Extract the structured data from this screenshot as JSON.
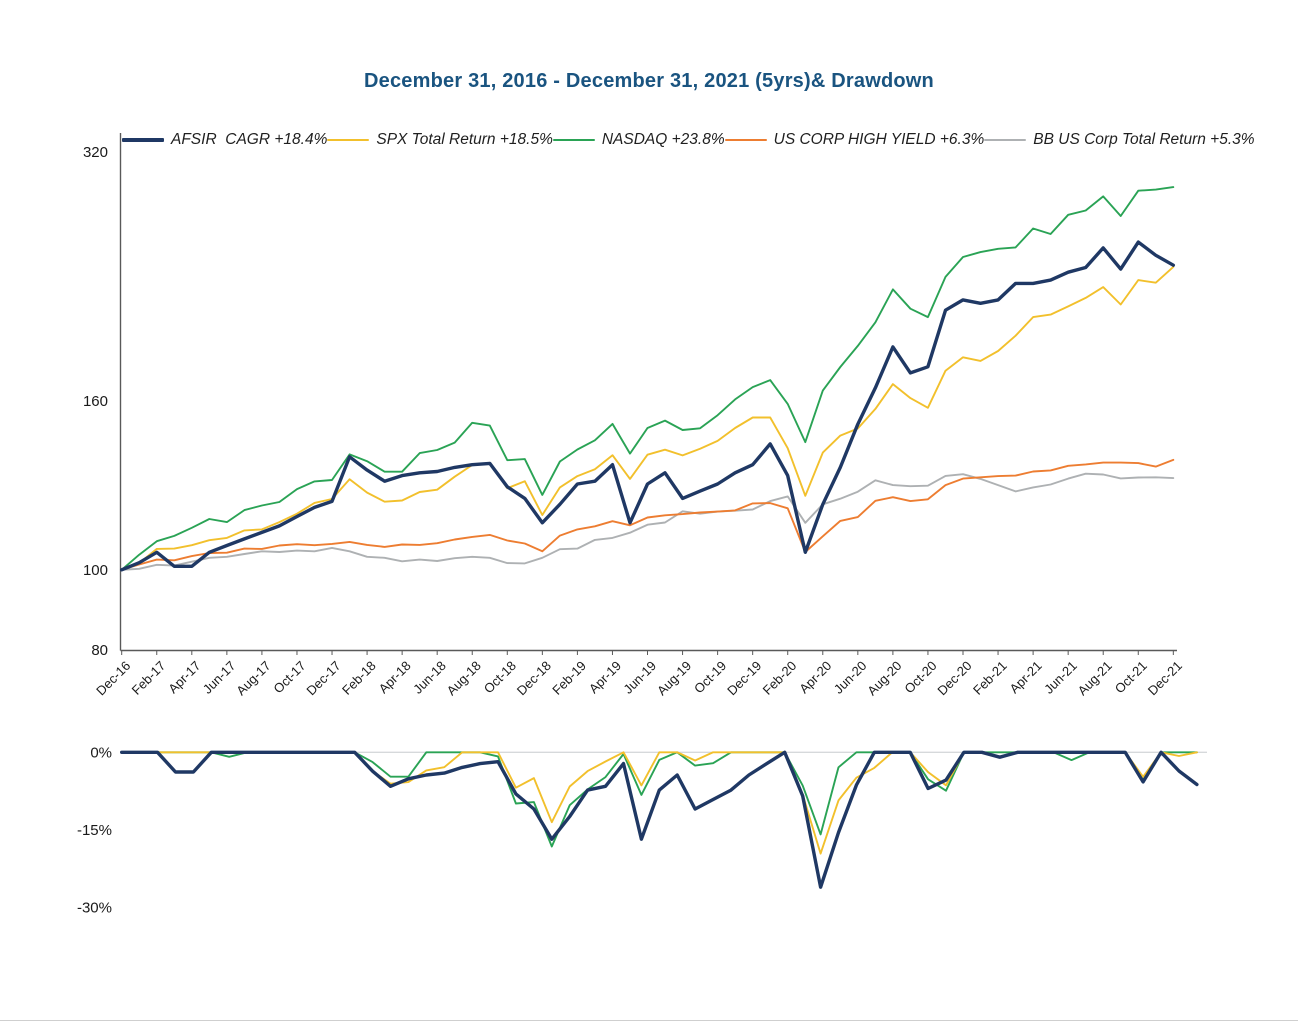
{
  "title": "December 31, 2016 - December 31, 2021 (5yrs)& Drawdown",
  "title_color": "#1A5480",
  "chart_data": [
    {
      "type": "line",
      "name": "cumulative-performance",
      "y_scale": "log2",
      "y_axis_ticks": [
        320,
        160,
        100,
        80
      ],
      "y_base": 100,
      "x_tick_labels": [
        "Dec-16",
        "Feb-17",
        "Apr-17",
        "Jun-17",
        "Aug-17",
        "Oct-17",
        "Dec-17",
        "Feb-18",
        "Apr-18",
        "Jun-18",
        "Aug-18",
        "Oct-18",
        "Dec-18",
        "Feb-19",
        "Apr-19",
        "Jun-19",
        "Aug-19",
        "Oct-19",
        "Dec-19",
        "Feb-20",
        "Apr-20",
        "Jun-20",
        "Aug-20",
        "Oct-20",
        "Dec-20",
        "Feb-21",
        "Apr-21",
        "Jun-21",
        "Aug-21",
        "Oct-21",
        "Dec-21"
      ],
      "months_total": 60,
      "legend_position": "top",
      "grid": false,
      "series": [
        {
          "name": "AFSIR  CAGR +18.4%",
          "color": "#1F3864",
          "width": 3.4,
          "drawdown": true,
          "values": [
            100,
            102,
            105,
            101,
            101,
            105,
            107,
            109,
            111,
            113,
            116,
            119,
            121,
            137,
            132,
            128,
            130,
            131,
            131.5,
            133,
            134,
            134.5,
            126,
            122,
            114,
            120,
            127,
            128,
            134,
            114,
            127,
            131,
            122,
            124.5,
            127,
            131,
            134,
            142,
            130,
            105,
            120,
            133,
            150,
            166,
            186,
            173,
            176,
            206,
            212,
            210,
            212,
            222,
            222,
            224,
            229,
            232,
            245,
            231,
            249,
            240,
            233.5
          ]
        },
        {
          "name": "SPX Total Return +18.5%",
          "color": "#F2C02C",
          "width": 1.9,
          "drawdown": true,
          "values": [
            100,
            101.9,
            106,
            106.1,
            107.1,
            108.6,
            109.3,
            111.6,
            111.9,
            114.2,
            116.9,
            120.5,
            121.8,
            128.7,
            124,
            120.9,
            121.3,
            124.2,
            125,
            129.6,
            133.9,
            134.7,
            125.5,
            128,
            116.5,
            125.8,
            129.8,
            132.3,
            137.6,
            128.8,
            137.8,
            139.7,
            137.5,
            140.1,
            143.2,
            148.4,
            152.8,
            152.8,
            140.3,
            122.9,
            138.6,
            145.3,
            148.2,
            156.5,
            167.7,
            161.3,
            157,
            174.1,
            180.7,
            178.9,
            183.9,
            191.9,
            202.1,
            203.5,
            208.2,
            213.2,
            219.7,
            209.3,
            224,
            222.4,
            232.4
          ]
        },
        {
          "name": "NASDAQ +23.8%",
          "color": "#2AA355",
          "width": 1.9,
          "drawdown": true,
          "values": [
            100,
            104.3,
            108.3,
            109.9,
            112.4,
            115.2,
            114.2,
            118.1,
            119.6,
            120.8,
            125.2,
            127.9,
            128.4,
            137.9,
            135.3,
            131.4,
            131.4,
            138.4,
            139.6,
            142.5,
            150.6,
            149.4,
            135.7,
            136.1,
            123.2,
            135.2,
            139.8,
            143.4,
            150.1,
            138.2,
            148.4,
            151.5,
            147.6,
            148.3,
            153.8,
            160.7,
            166.3,
            169.6,
            158.7,
            142.7,
            164.7,
            175.9,
            186.5,
            199.2,
            218.3,
            206.9,
            202.1,
            226,
            238.9,
            242.2,
            244.4,
            245.4,
            258.6,
            254.7,
            268.7,
            271.9,
            282.8,
            267.8,
            287.3,
            288.2,
            290.2
          ]
        },
        {
          "name": "US CORP HIGH YIELD +6.3%",
          "color": "#ED7D31",
          "width": 1.9,
          "drawdown": false,
          "values": [
            100,
            101.5,
            102.9,
            102.7,
            103.9,
            104.8,
            104.9,
            106.1,
            106,
            107,
            107.4,
            107.1,
            107.5,
            108.1,
            107.2,
            106.6,
            107.3,
            107.2,
            107.7,
            108.8,
            109.6,
            110.2,
            108.5,
            107.6,
            105.3,
            110,
            111.9,
            112.9,
            114.5,
            113.2,
            115.7,
            116.4,
            116.8,
            117.3,
            117.6,
            118,
            120.3,
            120.4,
            118.7,
            105.1,
            109.8,
            114.6,
            115.8,
            121.2,
            122.4,
            121.1,
            121.7,
            126.6,
            128.9,
            129.4,
            129.8,
            130,
            131.5,
            131.9,
            133.6,
            134.1,
            134.8,
            134.8,
            134.6,
            133.3,
            135.8
          ]
        },
        {
          "name": "BB US Corp Total Return +5.3%",
          "color": "#AEB1B3",
          "width": 1.9,
          "drawdown": false,
          "values": [
            100,
            100.3,
            101.4,
            101.2,
            102.3,
            103.4,
            103.7,
            104.5,
            105.3,
            105.1,
            105.5,
            105.3,
            106.3,
            105.3,
            103.7,
            103.4,
            102.4,
            102.9,
            102.5,
            103.3,
            103.7,
            103.4,
            101.9,
            101.8,
            103.4,
            105.9,
            106.1,
            108.7,
            109.3,
            110.9,
            113.4,
            114.1,
            117.7,
            116.9,
            117.6,
            117.9,
            118.3,
            121.1,
            122.7,
            114,
            120,
            121.9,
            124.3,
            128.3,
            126.6,
            126.2,
            126.4,
            129.9,
            130.5,
            128.8,
            126.6,
            124.4,
            125.8,
            126.8,
            128.9,
            130.7,
            130.4,
            129,
            129.3,
            129.4,
            129.1
          ]
        }
      ]
    },
    {
      "type": "line",
      "name": "drawdown",
      "derived": "drawdown_from_running_max_of_first_three_series",
      "y_axis_ticks": [
        {
          "label": "0%",
          "value": 0
        },
        {
          "label": "-15%",
          "value": -15
        },
        {
          "label": "-30%",
          "value": -30
        }
      ],
      "y_unit": "percent",
      "grid": false
    }
  ]
}
